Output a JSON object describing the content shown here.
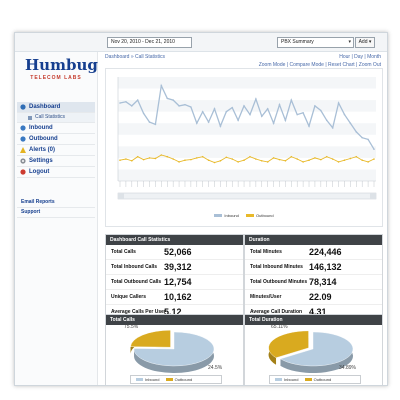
{
  "topbar": {
    "date_range": "Nov 20, 2010 - Dec 21, 2010",
    "report": "PBX Summary",
    "add_label": "Add ▾"
  },
  "logo": {
    "name": "Humbug",
    "tagline": "TELECOM LABS"
  },
  "sidebar": {
    "items": [
      {
        "label": "Dashboard",
        "icon": "dashboard-icon"
      },
      {
        "label": "Call Statistics",
        "icon": "phone-icon"
      },
      {
        "label": "Inbound",
        "icon": "inbound-arrow-icon"
      },
      {
        "label": "Outbound",
        "icon": "outbound-arrow-icon"
      },
      {
        "label": "Alerts (0)",
        "icon": "alert-icon"
      },
      {
        "label": "Settings",
        "icon": "gear-icon"
      },
      {
        "label": "Logout",
        "icon": "logout-icon"
      }
    ],
    "links": [
      "Email Reports",
      "Support"
    ]
  },
  "main": {
    "breadcrumb": "Dashboard » Call Statistics",
    "range_links": "Hour | Day | Month",
    "zoom_links": "Zoom Mode | Compare Mode | Reset Chart | Zoom Out"
  },
  "chart_data": {
    "type": "line",
    "ylim": [
      0,
      1.8
    ],
    "series": [
      {
        "name": "Inbound",
        "color": "#a9bfd6",
        "values": [
          1.35,
          1.37,
          1.3,
          1.4,
          1.17,
          1.02,
          0.98,
          1.65,
          1.43,
          1.4,
          1.3,
          1.32,
          1.28,
          1.0,
          1.2,
          1.02,
          1.25,
          0.95,
          1.2,
          1.27,
          1.05,
          1.3,
          1.15,
          1.42,
          1.12,
          1.25,
          1.0,
          1.32,
          1.05,
          1.4,
          1.15,
          1.18,
          0.95,
          1.3,
          1.22,
          1.05,
          0.92,
          1.35,
          1.15,
          1.0,
          0.85,
          0.75,
          0.72,
          0.55
        ]
      },
      {
        "name": "Outbound",
        "color": "#e8b92a",
        "values": [
          0.36,
          0.38,
          0.35,
          0.42,
          0.37,
          0.4,
          0.39,
          0.45,
          0.42,
          0.38,
          0.33,
          0.36,
          0.37,
          0.4,
          0.42,
          0.36,
          0.32,
          0.35,
          0.41,
          0.38,
          0.33,
          0.36,
          0.42,
          0.38,
          0.35,
          0.33,
          0.4,
          0.37,
          0.35,
          0.42,
          0.38,
          0.33,
          0.36,
          0.4,
          0.37,
          0.42,
          0.38,
          0.33,
          0.36,
          0.39,
          0.42,
          0.36,
          0.33,
          0.38
        ]
      }
    ],
    "legend": "bottom"
  },
  "call_stats": {
    "title": "Dashboard Call Statistics",
    "rows": [
      {
        "label": "Total Calls",
        "value": "52,066"
      },
      {
        "label": "Total Inbound Calls",
        "value": "39,312"
      },
      {
        "label": "Total Outbound Calls",
        "value": "12,754"
      },
      {
        "label": "Unique Callers",
        "value": "10,162"
      },
      {
        "label": "Average Calls Per User",
        "value": "5.12"
      }
    ]
  },
  "duration": {
    "title": "Duration",
    "rows": [
      {
        "label": "Total Minutes",
        "value": "224,446"
      },
      {
        "label": "Total Inbound Minutes",
        "value": "146,132"
      },
      {
        "label": "Total Outbound Minutes",
        "value": "78,314"
      },
      {
        "label": "Minutes/User",
        "value": "22.09"
      },
      {
        "label": "Average Call Duration",
        "value": "4.31"
      }
    ]
  },
  "pies": [
    {
      "title": "Total Calls",
      "slices": [
        {
          "name": "Inbound",
          "value": 75.5,
          "label": "75.5%",
          "color": "#b7cde0"
        },
        {
          "name": "Outbound",
          "value": 24.5,
          "label": "24.5%",
          "color": "#d9aa1f"
        }
      ]
    },
    {
      "title": "Total Duration",
      "slices": [
        {
          "name": "Inbound",
          "value": 65.11,
          "label": "65.11%",
          "color": "#b7cde0"
        },
        {
          "name": "Outbound",
          "value": 34.89,
          "label": "34.89%",
          "color": "#d9aa1f"
        }
      ]
    }
  ]
}
